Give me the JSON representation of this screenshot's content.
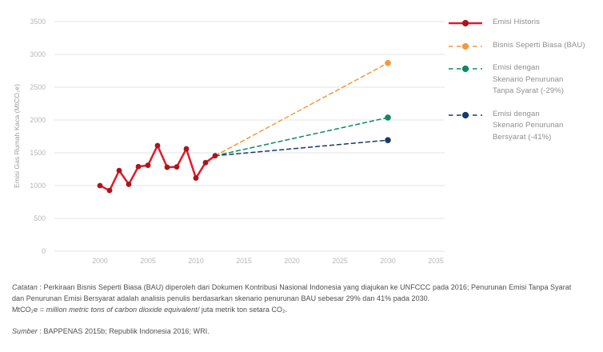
{
  "chart_data": {
    "type": "line",
    "title": "",
    "xlabel": "",
    "ylabel": "Emisi Gas Rumah Kaca (MtCO₂e)",
    "x_ticks": [
      "2000",
      "2005",
      "2010",
      "2015",
      "2020",
      "2025",
      "2030",
      "2035"
    ],
    "y_ticks": [
      0,
      500,
      1000,
      1500,
      2000,
      2500,
      3000,
      3500
    ],
    "xlim": [
      1995.3,
      2035.9
    ],
    "ylim": [
      0,
      3500
    ],
    "grid": "horizontal",
    "legend_position": "right",
    "grid_color": "#e3e3e3",
    "tick_color": "#b7b7b7",
    "axis_title_color": "#9c9c9c",
    "series": [
      {
        "name": "Emisi Historis",
        "label_lines": [
          "Emisi Historis"
        ],
        "color": "#e11b2c",
        "dot_color": "#a8161f",
        "line_style": "solid",
        "markers": "all",
        "x": [
          2000,
          2001,
          2002,
          2003,
          2004,
          2005,
          2006,
          2007,
          2008,
          2009,
          2010,
          2011,
          2012
        ],
        "y": [
          1000,
          925,
          1230,
          1020,
          1290,
          1310,
          1610,
          1280,
          1285,
          1560,
          1115,
          1350,
          1455
        ]
      },
      {
        "name": "Bisnis Seperti Biasa (BAU)",
        "label_lines": [
          "Bisnis Seperti Biasa (BAU)"
        ],
        "color": "#f5993b",
        "dot_color": "#f5993b",
        "line_style": "dashed",
        "markers": "last",
        "x": [
          2012,
          2030
        ],
        "y": [
          1455,
          2869
        ]
      },
      {
        "name": "Emisi dengan Skenario Penurunan Tanpa Syarat (-29%)",
        "label_lines": [
          "Emisi dengan",
          "Skenario Penurunan",
          "Tanpa Syarat (-29%)"
        ],
        "color": "#0e8a5e",
        "dot_color": "#0e8a5e",
        "line_style": "dashed",
        "markers": "last",
        "x": [
          2012,
          2030
        ],
        "y": [
          1455,
          2037
        ]
      },
      {
        "name": "Emisi dengan Skenario Penurunan Bersyarat (-41%)",
        "label_lines": [
          "Emisi dengan",
          "Skenario Penurunan",
          "Bersyarat (-41%)"
        ],
        "color": "#17396d",
        "dot_color": "#17396d",
        "line_style": "dashed",
        "markers": "last",
        "x": [
          2012,
          2030
        ],
        "y": [
          1455,
          1693
        ]
      }
    ]
  },
  "notes": {
    "catatan_label": "Catatan",
    "catatan_text": " : Perkiraan Bisnis Seperti Biasa (BAU) diperoleh dari Dokumen Kontribusi Nasional Indonesia yang diajukan ke UNFCCC pada 2016; Penurunan Emisi Tanpa Syarat dan Penurunan Emisi Bersyarat adalah analisis penulis berdasarkan skenario penurunan BAU sebesar 29% dan 41% pada 2030.",
    "unit_prefix": "MtCO₂e = ",
    "unit_italic": "million metric tons of carbon dioxide equivalent/",
    "unit_suffix": " juta metrik ton setara CO₂.",
    "sumber_label": "Sumber",
    "sumber_text": " : BAPPENAS 2015b; Republik Indonesia 2016; WRI."
  }
}
